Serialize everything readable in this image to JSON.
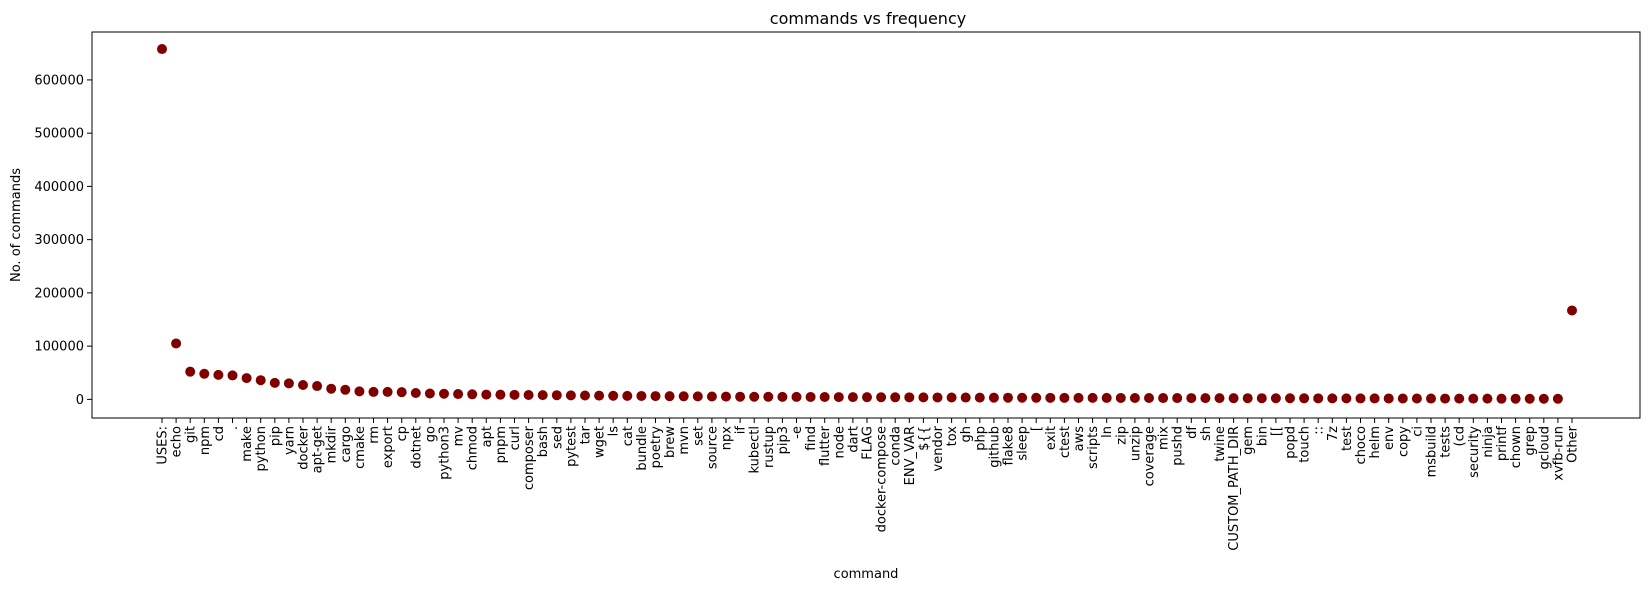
{
  "chart_data": {
    "type": "scatter",
    "title": "commands vs frequency",
    "xlabel": "command",
    "ylabel": "No. of commands",
    "ylim": [
      -35000,
      690000
    ],
    "yticks": [
      0,
      100000,
      200000,
      300000,
      400000,
      500000,
      600000
    ],
    "marker_color": "#800000",
    "grid": false,
    "categories": [
      "USES:",
      "echo",
      "git",
      "npm",
      "cd",
      ".",
      "make",
      "python",
      "pip",
      "yarn",
      "docker",
      "apt-get",
      "mkdir",
      "cargo",
      "cmake",
      "rm",
      "export",
      "cp",
      "dotnet",
      "go",
      "python3",
      "mv",
      "chmod",
      "apt",
      "pnpm",
      "curl",
      "composer",
      "bash",
      "sed",
      "pytest",
      "tar",
      "wget",
      "ls",
      "cat",
      "bundle",
      "poetry",
      "brew",
      "mvn",
      "set",
      "source",
      "npx",
      "if",
      "kubectl",
      "rustup",
      "pip3",
      "-e",
      "find",
      "flutter",
      "node",
      "dart",
      "FLAG",
      "docker-compose",
      "conda",
      "ENV_VAR",
      "${{",
      "vendor",
      "tox",
      "gh",
      "php",
      "github",
      "flake8",
      "sleep",
      "[",
      "exit",
      "ctest",
      "aws",
      "scripts",
      "ln",
      "zip",
      "unzip",
      "coverage",
      "mix",
      "pushd",
      "df",
      "sh",
      "twine",
      "CUSTOM_PATH_DIR",
      "gem",
      "bin",
      "[[",
      "popd",
      "touch",
      "::",
      "7z",
      "test",
      "choco",
      "helm",
      "env",
      "copy",
      "ci",
      "msbuild",
      "tests",
      "(cd",
      "security",
      "ninja",
      "printf",
      "chown",
      "grep",
      "gcloud",
      "xvfb-run",
      "Other"
    ],
    "values": [
      658000,
      105000,
      52000,
      48000,
      46000,
      45000,
      40000,
      36000,
      31000,
      30000,
      27000,
      25000,
      20000,
      18000,
      15000,
      14000,
      14000,
      13500,
      12000,
      11000,
      10500,
      10000,
      9500,
      9000,
      8800,
      8500,
      8200,
      8000,
      7800,
      7500,
      7300,
      7000,
      6800,
      6600,
      6400,
      6200,
      6000,
      5800,
      5600,
      5400,
      5200,
      5000,
      4900,
      4800,
      4700,
      4600,
      4500,
      4400,
      4300,
      4200,
      4100,
      4000,
      3900,
      3800,
      3700,
      3600,
      3500,
      3400,
      3300,
      3200,
      3100,
      3000,
      2950,
      2900,
      2850,
      2800,
      2750,
      2700,
      2650,
      2600,
      2550,
      2500,
      2450,
      2400,
      2350,
      2300,
      2250,
      2200,
      2150,
      2100,
      2050,
      2000,
      1950,
      1900,
      1850,
      1800,
      1750,
      1700,
      1650,
      1600,
      1550,
      1500,
      1450,
      1400,
      1350,
      1300,
      1250,
      1200,
      1150,
      1100,
      167000
    ]
  }
}
